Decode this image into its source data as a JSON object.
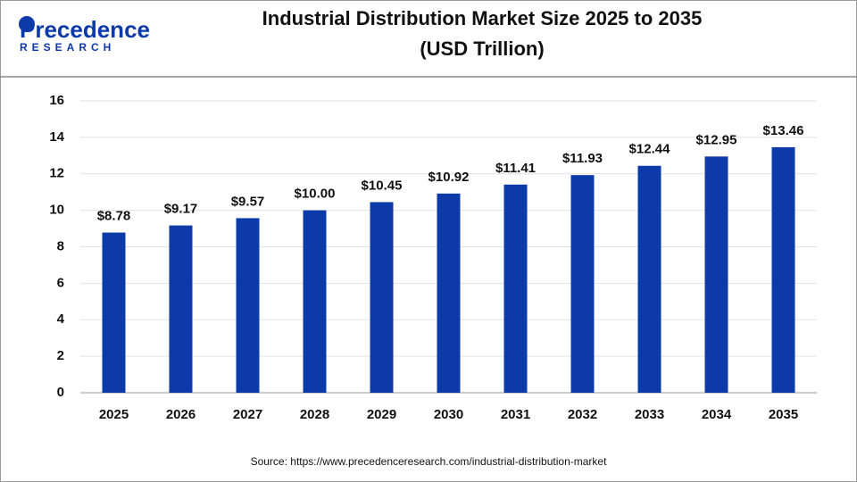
{
  "logo": {
    "name": "Precedence",
    "tagline": "RESEARCH"
  },
  "source": "Source: https://www.precedenceresearch.com/industrial-distribution-market",
  "chart_data": {
    "type": "bar",
    "title": "Industrial Distribution Market Size 2025 to 2035",
    "subtitle": "(USD Trillion)",
    "categories": [
      "2025",
      "2026",
      "2027",
      "2028",
      "2029",
      "2030",
      "2031",
      "2032",
      "2033",
      "2034",
      "2035"
    ],
    "values": [
      8.78,
      9.17,
      9.57,
      10.0,
      10.45,
      10.92,
      11.41,
      11.93,
      12.44,
      12.95,
      13.46
    ],
    "value_labels": [
      "$8.78",
      "$9.17",
      "$9.57",
      "$10.00",
      "$10.45",
      "$10.92",
      "$11.41",
      "$11.93",
      "$12.44",
      "$12.95",
      "$13.46"
    ],
    "color": "#0d3aa9",
    "ylim": [
      0,
      16
    ],
    "yticks": [
      0,
      2,
      4,
      6,
      8,
      10,
      12,
      14,
      16
    ],
    "grid": true
  }
}
